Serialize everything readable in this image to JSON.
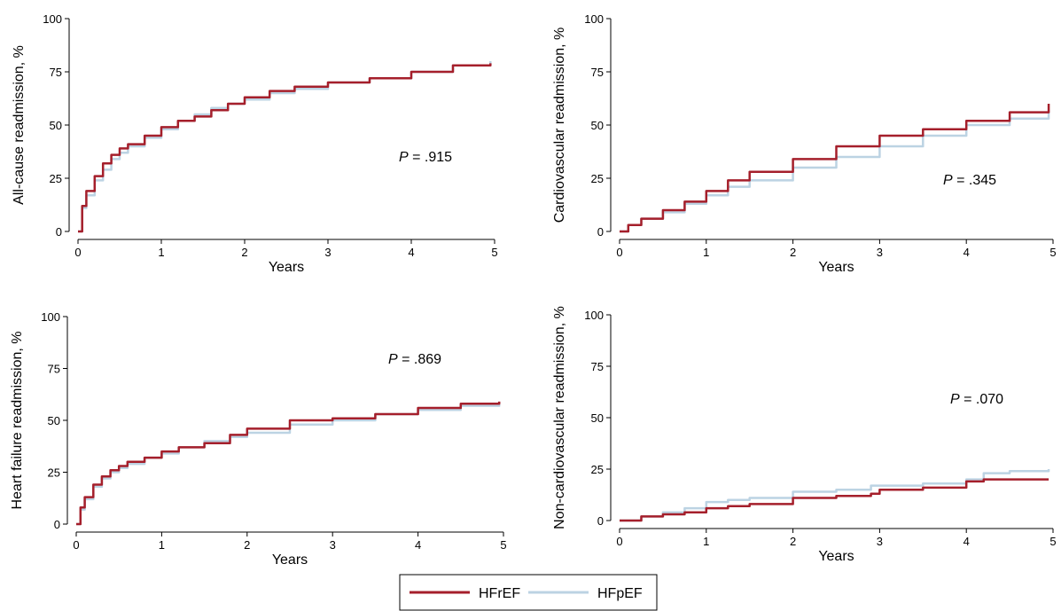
{
  "colors": {
    "HFrEF": "#a51f2b",
    "HFpEF": "#bcd3e3"
  },
  "legend": {
    "items": [
      {
        "label": "HFrEF"
      },
      {
        "label": "HFpEF"
      }
    ],
    "placement": "bottom-center"
  },
  "chart_data": [
    {
      "type": "line",
      "xlabel": "Years",
      "ylabel": "All-cause readmission, %",
      "xlim": [
        0,
        5
      ],
      "ylim": [
        0,
        100
      ],
      "xticks": [
        0,
        1,
        2,
        3,
        4,
        5
      ],
      "yticks": [
        0,
        25,
        50,
        75,
        100
      ],
      "annotation": {
        "italic": "P",
        "text": " = .915"
      },
      "x": [
        0,
        0.05,
        0.1,
        0.2,
        0.3,
        0.4,
        0.5,
        0.6,
        0.8,
        1.0,
        1.2,
        1.4,
        1.6,
        1.8,
        2.0,
        2.3,
        2.6,
        3.0,
        3.5,
        4.0,
        4.5,
        4.95
      ],
      "series": [
        {
          "name": "HFrEF",
          "values": [
            0,
            12,
            19,
            26,
            32,
            36,
            39,
            41,
            45,
            49,
            52,
            54,
            57,
            60,
            63,
            66,
            68,
            70,
            72,
            75,
            78,
            79
          ]
        },
        {
          "name": "HFpEF",
          "values": [
            0,
            11,
            17,
            24,
            29,
            34,
            37,
            40,
            44,
            48,
            52,
            55,
            58,
            60,
            62,
            65,
            67,
            70,
            72,
            75,
            78,
            80
          ]
        }
      ]
    },
    {
      "type": "line",
      "xlabel": "Years",
      "ylabel": "Cardiovascular readmission, %",
      "xlim": [
        0,
        5
      ],
      "ylim": [
        0,
        100
      ],
      "xticks": [
        0,
        1,
        2,
        3,
        4,
        5
      ],
      "yticks": [
        0,
        25,
        50,
        75,
        100
      ],
      "annotation": {
        "italic": "P",
        "text": " = .345"
      },
      "x": [
        0,
        0.1,
        0.25,
        0.5,
        0.75,
        1.0,
        1.25,
        1.5,
        2.0,
        2.5,
        3.0,
        3.5,
        4.0,
        4.5,
        4.95
      ],
      "series": [
        {
          "name": "HFrEF",
          "values": [
            0,
            3,
            6,
            10,
            14,
            19,
            24,
            28,
            34,
            40,
            45,
            48,
            52,
            56,
            60
          ]
        },
        {
          "name": "HFpEF",
          "values": [
            0,
            3,
            6,
            9,
            13,
            17,
            21,
            24,
            30,
            35,
            40,
            45,
            50,
            53,
            57
          ]
        }
      ]
    },
    {
      "type": "line",
      "xlabel": "Years",
      "ylabel": "Heart failure readmission, %",
      "xlim": [
        0,
        5
      ],
      "ylim": [
        0,
        100
      ],
      "xticks": [
        0,
        1,
        2,
        3,
        4,
        5
      ],
      "yticks": [
        0,
        25,
        50,
        75,
        100
      ],
      "annotation": {
        "italic": "P",
        "text": " = .869"
      },
      "x": [
        0,
        0.05,
        0.1,
        0.2,
        0.3,
        0.4,
        0.5,
        0.6,
        0.8,
        1.0,
        1.2,
        1.5,
        1.8,
        2.0,
        2.5,
        3.0,
        3.5,
        4.0,
        4.5,
        4.95
      ],
      "series": [
        {
          "name": "HFrEF",
          "values": [
            0,
            8,
            13,
            19,
            23,
            26,
            28,
            30,
            32,
            35,
            37,
            39,
            43,
            46,
            50,
            51,
            53,
            56,
            58,
            59
          ]
        },
        {
          "name": "HFpEF",
          "values": [
            0,
            7,
            12,
            18,
            22,
            25,
            27,
            29,
            32,
            34,
            37,
            40,
            42,
            44,
            48,
            50,
            53,
            55,
            57,
            59
          ]
        }
      ]
    },
    {
      "type": "line",
      "xlabel": "Years",
      "ylabel": "Non-cardiovascular readmission, %",
      "xlim": [
        0,
        5
      ],
      "ylim": [
        0,
        100
      ],
      "xticks": [
        0,
        1,
        2,
        3,
        4,
        5
      ],
      "yticks": [
        0,
        25,
        50,
        75,
        100
      ],
      "annotation": {
        "italic": "P",
        "text": " = .070"
      },
      "x": [
        0,
        0.25,
        0.5,
        0.75,
        1.0,
        1.25,
        1.5,
        2.0,
        2.5,
        2.9,
        3.0,
        3.5,
        4.0,
        4.2,
        4.5,
        4.95
      ],
      "series": [
        {
          "name": "HFrEF",
          "values": [
            0,
            2,
            3,
            4,
            6,
            7,
            8,
            11,
            12,
            13,
            15,
            16,
            19,
            20,
            20,
            20
          ]
        },
        {
          "name": "HFpEF",
          "values": [
            0,
            2,
            4,
            6,
            9,
            10,
            11,
            14,
            15,
            17,
            17,
            18,
            20,
            23,
            24,
            25
          ]
        }
      ]
    }
  ]
}
